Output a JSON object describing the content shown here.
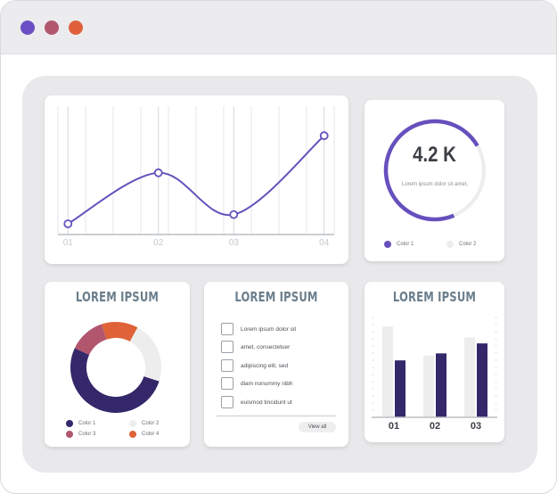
{
  "window": {
    "controls": [
      {
        "name": "close",
        "color": "#6a4fc4"
      },
      {
        "name": "minimize",
        "color": "#b2566e"
      },
      {
        "name": "maximize",
        "color": "#e0603c"
      }
    ]
  },
  "colors": {
    "purple": "#6650bd",
    "navy": "#34276a",
    "mauve": "#b2566e",
    "orange": "#df6238",
    "light": "#ededee",
    "title": "#6b7e8c"
  },
  "line_card": {
    "chart_data": {
      "type": "line",
      "categories": [
        "01",
        "02",
        "03",
        "04"
      ],
      "x": [
        0.2,
        2.0,
        3.5,
        5.3
      ],
      "values": [
        0.0,
        55,
        10,
        95
      ],
      "xlim": [
        0,
        5.5
      ],
      "ylim": [
        0,
        100
      ],
      "grid": true,
      "grid_lines": 11
    }
  },
  "stat_card": {
    "value": "4.2 K",
    "subtitle": "Lorem ipsum dolor sit amet,",
    "chart_data": {
      "type": "pie",
      "categories": [
        "Color 1",
        "Color 2"
      ],
      "values": [
        73,
        27
      ]
    },
    "legend": [
      {
        "label": "Color 1",
        "color": "#6650bd"
      },
      {
        "label": "Color 2",
        "color": "#ededee"
      }
    ]
  },
  "donut_card": {
    "title": "LOREM IPSUM",
    "chart_data": {
      "type": "pie",
      "categories": [
        "Color 1",
        "Color 2",
        "Color 3",
        "Color 4"
      ],
      "values": [
        52,
        22,
        13,
        13
      ]
    },
    "legend": [
      {
        "label": "Color 1",
        "color": "#34276a"
      },
      {
        "label": "Color 2",
        "color": "#ededee"
      },
      {
        "label": "Color 3",
        "color": "#b2566e"
      },
      {
        "label": "Color 4",
        "color": "#df6238"
      }
    ]
  },
  "check_card": {
    "title": "LOREM IPSUM",
    "items": [
      {
        "label": "Lorem ipsum dolor sit",
        "checked": false
      },
      {
        "label": "amet, consectetuer",
        "checked": false
      },
      {
        "label": "adipiscing elit, sed",
        "checked": false
      },
      {
        "label": "diam nonummy nibh",
        "checked": false
      },
      {
        "label": "euismod tincidunt ut",
        "checked": false
      }
    ],
    "button_label": "View all"
  },
  "bar_card": {
    "title": "LOREM IPSUM",
    "chart_data": {
      "type": "bar",
      "categories": [
        "01",
        "02",
        "03"
      ],
      "series": [
        {
          "values": [
            91,
            62,
            80
          ],
          "color": "#ededee"
        },
        {
          "values": [
            57,
            64,
            74
          ],
          "color": "#34276a"
        }
      ],
      "ylim": [
        0,
        100
      ],
      "grid": false
    }
  }
}
